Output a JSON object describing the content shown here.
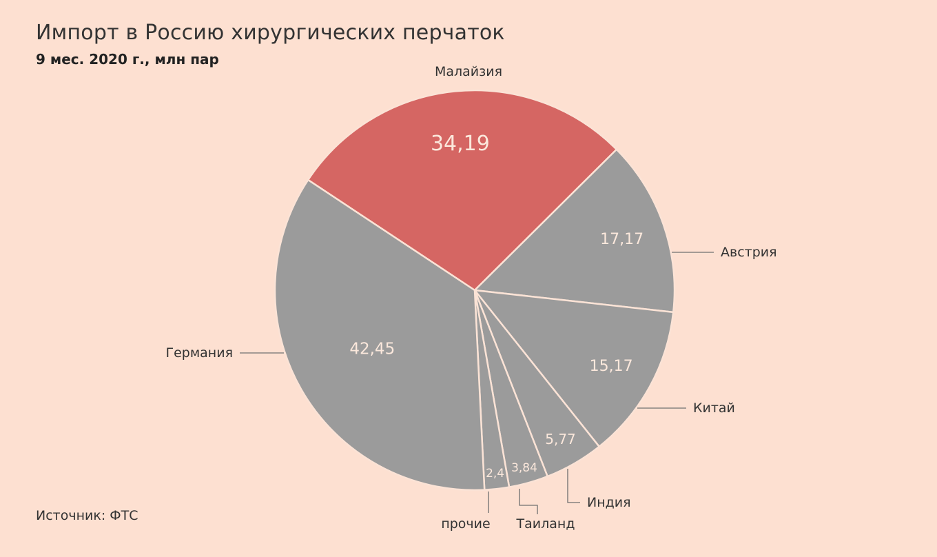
{
  "chart_data": {
    "type": "pie",
    "title": "Импорт в Россию хирургических перчаток",
    "subtitle": "9 мес. 2020 г., млн пар",
    "source": "Источник: ФТС",
    "slices": [
      {
        "label": "Малайзия",
        "value": 34.19,
        "value_text": "34,19",
        "color": "#d56663",
        "highlight": true
      },
      {
        "label": "Австрия",
        "value": 17.17,
        "value_text": "17,17",
        "color": "#9b9b9b"
      },
      {
        "label": "Китай",
        "value": 15.17,
        "value_text": "15,17",
        "color": "#9b9b9b"
      },
      {
        "label": "Индия",
        "value": 5.77,
        "value_text": "5,77",
        "color": "#9b9b9b"
      },
      {
        "label": "Таиланд",
        "value": 3.84,
        "value_text": "3,84",
        "color": "#9b9b9b"
      },
      {
        "label": "прочие",
        "value": 2.4,
        "value_text": "2,4",
        "color": "#9b9b9b"
      },
      {
        "label": "Германия",
        "value": 42.45,
        "value_text": "42,45",
        "color": "#9b9b9b"
      }
    ],
    "colors": {
      "background": "#fde0d1",
      "highlight": "#d56663",
      "other": "#9b9b9b",
      "separator": "#fbe3d6"
    }
  }
}
